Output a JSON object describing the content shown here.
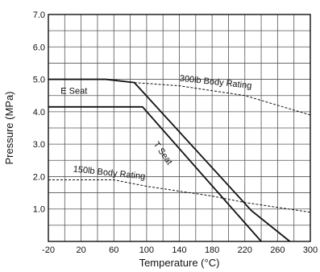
{
  "chart_data": {
    "type": "line",
    "title": "",
    "xlabel": "Temperature (°C)",
    "ylabel": "Pressure (MPa)",
    "xlim": [
      -20,
      300
    ],
    "ylim": [
      0,
      7
    ],
    "grid": true,
    "x_ticks": [
      {
        "value": -20,
        "label": "-20"
      },
      {
        "value": 20,
        "label": "20"
      },
      {
        "value": 60,
        "label": "60"
      },
      {
        "value": 100,
        "label": "100"
      },
      {
        "value": 140,
        "label": "140"
      },
      {
        "value": 180,
        "label": "180"
      },
      {
        "value": 220,
        "label": "220"
      },
      {
        "value": 260,
        "label": "260"
      },
      {
        "value": 300,
        "label": "300"
      }
    ],
    "y_ticks": [
      {
        "value": 1,
        "label": "1.0"
      },
      {
        "value": 2,
        "label": "2.0"
      },
      {
        "value": 3,
        "label": "3.0"
      },
      {
        "value": 4,
        "label": "4.0"
      },
      {
        "value": 5,
        "label": "5.0"
      },
      {
        "value": 6,
        "label": "6.0"
      },
      {
        "value": 7,
        "label": "7.0"
      }
    ],
    "series": [
      {
        "name": "E Seat",
        "style": "solid",
        "points": [
          [
            -20,
            5.0
          ],
          [
            50,
            5.0
          ],
          [
            85,
            4.9
          ],
          [
            228,
            0.95
          ],
          [
            275,
            0.0
          ]
        ]
      },
      {
        "name": "T Seat",
        "style": "solid",
        "points": [
          [
            -20,
            4.15
          ],
          [
            95,
            4.15
          ],
          [
            240,
            0.0
          ]
        ]
      },
      {
        "name": "300lb Body Rating",
        "style": "dashed",
        "points": [
          [
            85,
            4.9
          ],
          [
            140,
            4.8
          ],
          [
            180,
            4.65
          ],
          [
            220,
            4.5
          ],
          [
            260,
            4.2
          ],
          [
            300,
            3.9
          ]
        ]
      },
      {
        "name": "150lb Body Rating",
        "style": "dashed",
        "points": [
          [
            -20,
            1.9
          ],
          [
            60,
            1.9
          ],
          [
            100,
            1.7
          ],
          [
            140,
            1.55
          ],
          [
            180,
            1.4
          ],
          [
            220,
            1.2
          ],
          [
            260,
            1.05
          ],
          [
            300,
            0.9
          ]
        ]
      }
    ],
    "annotations": [
      {
        "text": "E Seat",
        "x": -5,
        "y": 4.55,
        "rotate": 0
      },
      {
        "text": "T Seat",
        "x": 108,
        "y": 3.0,
        "rotate": 55
      },
      {
        "text": "300lb Body Rating",
        "x": 140,
        "y": 4.95,
        "rotate": 6
      },
      {
        "text": "150lb Body Rating",
        "x": 10,
        "y": 2.15,
        "rotate": 6
      }
    ]
  },
  "colors": {
    "line": "#111111",
    "grid": "#555555",
    "background": "#ffffff"
  }
}
